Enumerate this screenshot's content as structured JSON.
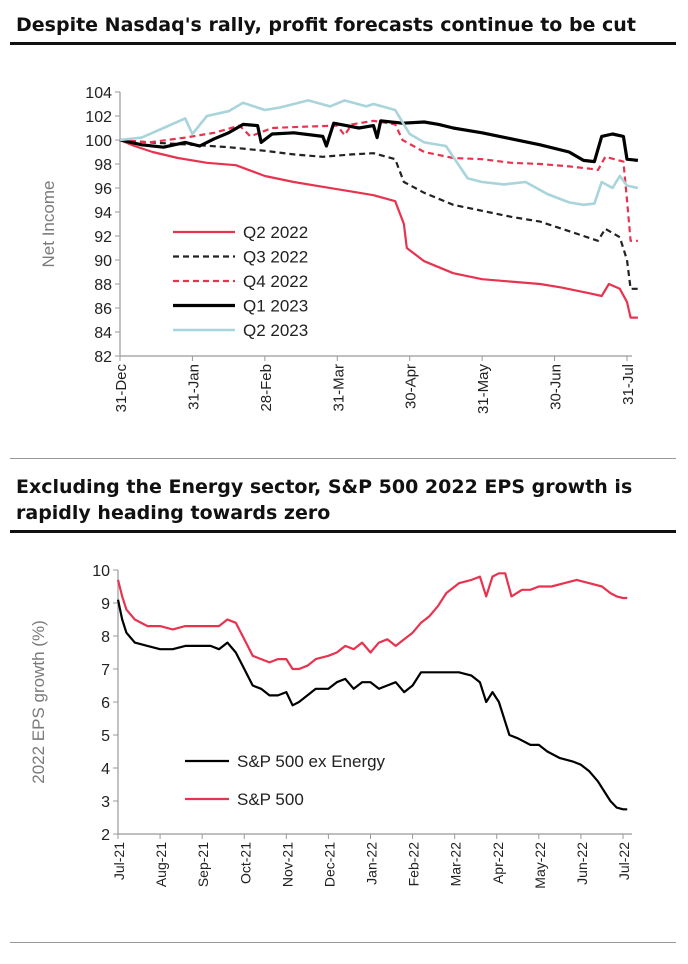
{
  "chart_data": [
    {
      "type": "line",
      "title": "Despite Nasdaq's rally, profit forecasts continue to be cut",
      "ylabel": "Net Income",
      "ylim": [
        82,
        104
      ],
      "yticks": [
        82,
        84,
        86,
        88,
        90,
        92,
        94,
        96,
        98,
        100,
        102,
        104
      ],
      "x_tick_labels": [
        "31-Dec",
        "31-Jan",
        "28-Feb",
        "31-Mar",
        "30-Apr",
        "31-May",
        "30-Jun",
        "31-Jul"
      ],
      "legend_position": "lower-left",
      "series": [
        {
          "name": "Q2 2022",
          "color": "#e8334f",
          "dash": "solid",
          "points": [
            [
              0,
              100
            ],
            [
              0.2,
              99.5
            ],
            [
              0.45,
              99.0
            ],
            [
              0.8,
              98.5
            ],
            [
              1.2,
              98.1
            ],
            [
              1.6,
              97.9
            ],
            [
              2.0,
              97.0
            ],
            [
              2.4,
              96.5
            ],
            [
              2.8,
              96.1
            ],
            [
              3.2,
              95.7
            ],
            [
              3.5,
              95.4
            ],
            [
              3.8,
              94.9
            ],
            [
              3.92,
              93
            ],
            [
              3.96,
              91
            ],
            [
              4.2,
              89.9
            ],
            [
              4.6,
              88.9
            ],
            [
              5.0,
              88.4
            ],
            [
              5.4,
              88.2
            ],
            [
              5.8,
              88.0
            ],
            [
              6.1,
              87.7
            ],
            [
              6.5,
              87.2
            ],
            [
              6.65,
              87.0
            ],
            [
              6.75,
              88.0
            ],
            [
              6.9,
              87.6
            ],
            [
              7.0,
              86.5
            ],
            [
              7.05,
              85.2
            ],
            [
              7.15,
              85.2
            ]
          ]
        },
        {
          "name": "Q3 2022",
          "color": "#222222",
          "dash": "dashed",
          "points": [
            [
              0,
              100
            ],
            [
              0.4,
              99.8
            ],
            [
              1.0,
              99.6
            ],
            [
              1.5,
              99.4
            ],
            [
              2.0,
              99.1
            ],
            [
              2.4,
              98.8
            ],
            [
              2.8,
              98.6
            ],
            [
              3.2,
              98.8
            ],
            [
              3.5,
              98.9
            ],
            [
              3.8,
              98.4
            ],
            [
              3.92,
              96.5
            ],
            [
              4.2,
              95.6
            ],
            [
              4.6,
              94.6
            ],
            [
              5.0,
              94.1
            ],
            [
              5.4,
              93.6
            ],
            [
              5.8,
              93.2
            ],
            [
              6.2,
              92.4
            ],
            [
              6.6,
              91.6
            ],
            [
              6.7,
              92.6
            ],
            [
              6.9,
              91.9
            ],
            [
              7.0,
              90
            ],
            [
              7.05,
              87.6
            ],
            [
              7.15,
              87.6
            ]
          ]
        },
        {
          "name": "Q4 2022",
          "color": "#e8334f",
          "dash": "dashed",
          "points": [
            [
              0,
              100
            ],
            [
              0.4,
              99.8
            ],
            [
              0.9,
              100.2
            ],
            [
              1.3,
              100.6
            ],
            [
              1.65,
              101.2
            ],
            [
              1.8,
              100.3
            ],
            [
              2.1,
              101.0
            ],
            [
              2.5,
              101.1
            ],
            [
              3.0,
              101.2
            ],
            [
              3.1,
              100.4
            ],
            [
              3.2,
              101.3
            ],
            [
              3.5,
              101.6
            ],
            [
              3.8,
              101.3
            ],
            [
              3.9,
              100.0
            ],
            [
              4.2,
              99.0
            ],
            [
              4.6,
              98.5
            ],
            [
              5.0,
              98.4
            ],
            [
              5.4,
              98.1
            ],
            [
              5.8,
              98.0
            ],
            [
              6.2,
              97.8
            ],
            [
              6.5,
              97.6
            ],
            [
              6.6,
              97.5
            ],
            [
              6.7,
              98.6
            ],
            [
              6.95,
              98.2
            ],
            [
              7.0,
              95
            ],
            [
              7.05,
              91.6
            ],
            [
              7.15,
              91.6
            ]
          ]
        },
        {
          "name": "Q1 2023",
          "color": "#000000",
          "dash": "solid",
          "points": [
            [
              0,
              100
            ],
            [
              0.3,
              99.6
            ],
            [
              0.6,
              99.4
            ],
            [
              0.9,
              99.8
            ],
            [
              1.1,
              99.5
            ],
            [
              1.3,
              100.1
            ],
            [
              1.5,
              100.6
            ],
            [
              1.7,
              101.3
            ],
            [
              1.9,
              101.2
            ],
            [
              1.95,
              99.8
            ],
            [
              2.1,
              100.5
            ],
            [
              2.4,
              100.6
            ],
            [
              2.8,
              100.3
            ],
            [
              2.85,
              99.5
            ],
            [
              2.95,
              101.4
            ],
            [
              3.3,
              101.0
            ],
            [
              3.5,
              101.2
            ],
            [
              3.55,
              100.2
            ],
            [
              3.6,
              101.6
            ],
            [
              3.9,
              101.4
            ],
            [
              4.2,
              101.5
            ],
            [
              4.4,
              101.3
            ],
            [
              4.6,
              101.0
            ],
            [
              5.0,
              100.6
            ],
            [
              5.4,
              100.1
            ],
            [
              5.8,
              99.6
            ],
            [
              6.2,
              99.0
            ],
            [
              6.4,
              98.3
            ],
            [
              6.55,
              98.2
            ],
            [
              6.65,
              100.3
            ],
            [
              6.8,
              100.5
            ],
            [
              6.95,
              100.3
            ],
            [
              7.0,
              98.4
            ],
            [
              7.15,
              98.3
            ]
          ]
        },
        {
          "name": "Q2 2023",
          "color": "#a8d4da",
          "dash": "solid",
          "points": [
            [
              0,
              100
            ],
            [
              0.3,
              100.2
            ],
            [
              0.6,
              101.0
            ],
            [
              0.9,
              101.8
            ],
            [
              1.0,
              100.5
            ],
            [
              1.2,
              102.0
            ],
            [
              1.5,
              102.4
            ],
            [
              1.7,
              103.1
            ],
            [
              2.0,
              102.5
            ],
            [
              2.2,
              102.7
            ],
            [
              2.6,
              103.3
            ],
            [
              2.9,
              102.8
            ],
            [
              3.1,
              103.3
            ],
            [
              3.4,
              102.8
            ],
            [
              3.5,
              103.0
            ],
            [
              3.8,
              102.5
            ],
            [
              4.0,
              100.5
            ],
            [
              4.2,
              99.8
            ],
            [
              4.5,
              99.5
            ],
            [
              4.8,
              96.8
            ],
            [
              5.0,
              96.5
            ],
            [
              5.3,
              96.3
            ],
            [
              5.6,
              96.5
            ],
            [
              5.9,
              95.5
            ],
            [
              6.2,
              94.8
            ],
            [
              6.4,
              94.6
            ],
            [
              6.55,
              94.7
            ],
            [
              6.65,
              96.5
            ],
            [
              6.8,
              96.0
            ],
            [
              6.9,
              97.0
            ],
            [
              7.0,
              96.2
            ],
            [
              7.15,
              96.0
            ]
          ]
        }
      ]
    },
    {
      "type": "line",
      "title": "Excluding the Energy sector, S&P 500 2022 EPS growth is rapidly heading towards zero",
      "ylabel": "2022 EPS growth (%)",
      "ylim": [
        2,
        10
      ],
      "yticks": [
        2,
        3,
        4,
        5,
        6,
        7,
        8,
        9,
        10
      ],
      "x_tick_labels": [
        "Jul-21",
        "Aug-21",
        "Sep-21",
        "Oct-21",
        "Nov-21",
        "Dec-21",
        "Jan-22",
        "Feb-22",
        "Mar-22",
        "Apr-22",
        "May-22",
        "Jun-22",
        "Jul-22"
      ],
      "legend_position": "lower-left",
      "series": [
        {
          "name": "S&P 500 ex Energy",
          "color": "#000000",
          "dash": "solid",
          "points": [
            [
              0,
              9.1
            ],
            [
              0.1,
              8.5
            ],
            [
              0.2,
              8.1
            ],
            [
              0.4,
              7.8
            ],
            [
              0.7,
              7.7
            ],
            [
              1.0,
              7.6
            ],
            [
              1.3,
              7.6
            ],
            [
              1.6,
              7.7
            ],
            [
              1.9,
              7.7
            ],
            [
              2.2,
              7.7
            ],
            [
              2.4,
              7.6
            ],
            [
              2.6,
              7.8
            ],
            [
              2.8,
              7.5
            ],
            [
              3.0,
              7.0
            ],
            [
              3.2,
              6.5
            ],
            [
              3.4,
              6.4
            ],
            [
              3.6,
              6.2
            ],
            [
              3.8,
              6.2
            ],
            [
              4.0,
              6.3
            ],
            [
              4.15,
              5.9
            ],
            [
              4.3,
              6.0
            ],
            [
              4.5,
              6.2
            ],
            [
              4.7,
              6.4
            ],
            [
              5.0,
              6.4
            ],
            [
              5.2,
              6.6
            ],
            [
              5.4,
              6.7
            ],
            [
              5.6,
              6.4
            ],
            [
              5.8,
              6.6
            ],
            [
              6.0,
              6.6
            ],
            [
              6.2,
              6.4
            ],
            [
              6.4,
              6.5
            ],
            [
              6.6,
              6.6
            ],
            [
              6.8,
              6.3
            ],
            [
              7.0,
              6.5
            ],
            [
              7.2,
              6.9
            ],
            [
              7.5,
              6.9
            ],
            [
              7.8,
              6.9
            ],
            [
              8.1,
              6.9
            ],
            [
              8.4,
              6.8
            ],
            [
              8.6,
              6.6
            ],
            [
              8.75,
              6.0
            ],
            [
              8.9,
              6.3
            ],
            [
              9.05,
              6.0
            ],
            [
              9.3,
              5.0
            ],
            [
              9.5,
              4.9
            ],
            [
              9.8,
              4.7
            ],
            [
              10.0,
              4.7
            ],
            [
              10.2,
              4.5
            ],
            [
              10.5,
              4.3
            ],
            [
              10.8,
              4.2
            ],
            [
              11.0,
              4.1
            ],
            [
              11.2,
              3.9
            ],
            [
              11.4,
              3.6
            ],
            [
              11.55,
              3.3
            ],
            [
              11.7,
              3.0
            ],
            [
              11.85,
              2.8
            ],
            [
              12.0,
              2.75
            ],
            [
              12.1,
              2.75
            ]
          ]
        },
        {
          "name": "S&P 500",
          "color": "#e8334f",
          "dash": "solid",
          "points": [
            [
              0,
              9.7
            ],
            [
              0.1,
              9.2
            ],
            [
              0.2,
              8.8
            ],
            [
              0.4,
              8.5
            ],
            [
              0.7,
              8.3
            ],
            [
              1.0,
              8.3
            ],
            [
              1.3,
              8.2
            ],
            [
              1.6,
              8.3
            ],
            [
              1.9,
              8.3
            ],
            [
              2.2,
              8.3
            ],
            [
              2.4,
              8.3
            ],
            [
              2.6,
              8.5
            ],
            [
              2.8,
              8.4
            ],
            [
              3.0,
              7.9
            ],
            [
              3.2,
              7.4
            ],
            [
              3.4,
              7.3
            ],
            [
              3.6,
              7.2
            ],
            [
              3.8,
              7.3
            ],
            [
              4.0,
              7.3
            ],
            [
              4.15,
              7.0
            ],
            [
              4.3,
              7.0
            ],
            [
              4.5,
              7.1
            ],
            [
              4.7,
              7.3
            ],
            [
              5.0,
              7.4
            ],
            [
              5.2,
              7.5
            ],
            [
              5.4,
              7.7
            ],
            [
              5.6,
              7.6
            ],
            [
              5.8,
              7.8
            ],
            [
              6.0,
              7.5
            ],
            [
              6.2,
              7.8
            ],
            [
              6.4,
              7.9
            ],
            [
              6.6,
              7.7
            ],
            [
              6.8,
              7.9
            ],
            [
              7.0,
              8.1
            ],
            [
              7.2,
              8.4
            ],
            [
              7.4,
              8.6
            ],
            [
              7.6,
              8.9
            ],
            [
              7.8,
              9.3
            ],
            [
              8.1,
              9.6
            ],
            [
              8.4,
              9.7
            ],
            [
              8.6,
              9.8
            ],
            [
              8.75,
              9.2
            ],
            [
              8.9,
              9.8
            ],
            [
              9.05,
              9.9
            ],
            [
              9.2,
              9.9
            ],
            [
              9.35,
              9.2
            ],
            [
              9.6,
              9.4
            ],
            [
              9.8,
              9.4
            ],
            [
              10.0,
              9.5
            ],
            [
              10.3,
              9.5
            ],
            [
              10.6,
              9.6
            ],
            [
              10.9,
              9.7
            ],
            [
              11.2,
              9.6
            ],
            [
              11.5,
              9.5
            ],
            [
              11.7,
              9.3
            ],
            [
              11.85,
              9.2
            ],
            [
              12.0,
              9.15
            ],
            [
              12.1,
              9.15
            ]
          ]
        }
      ]
    }
  ]
}
